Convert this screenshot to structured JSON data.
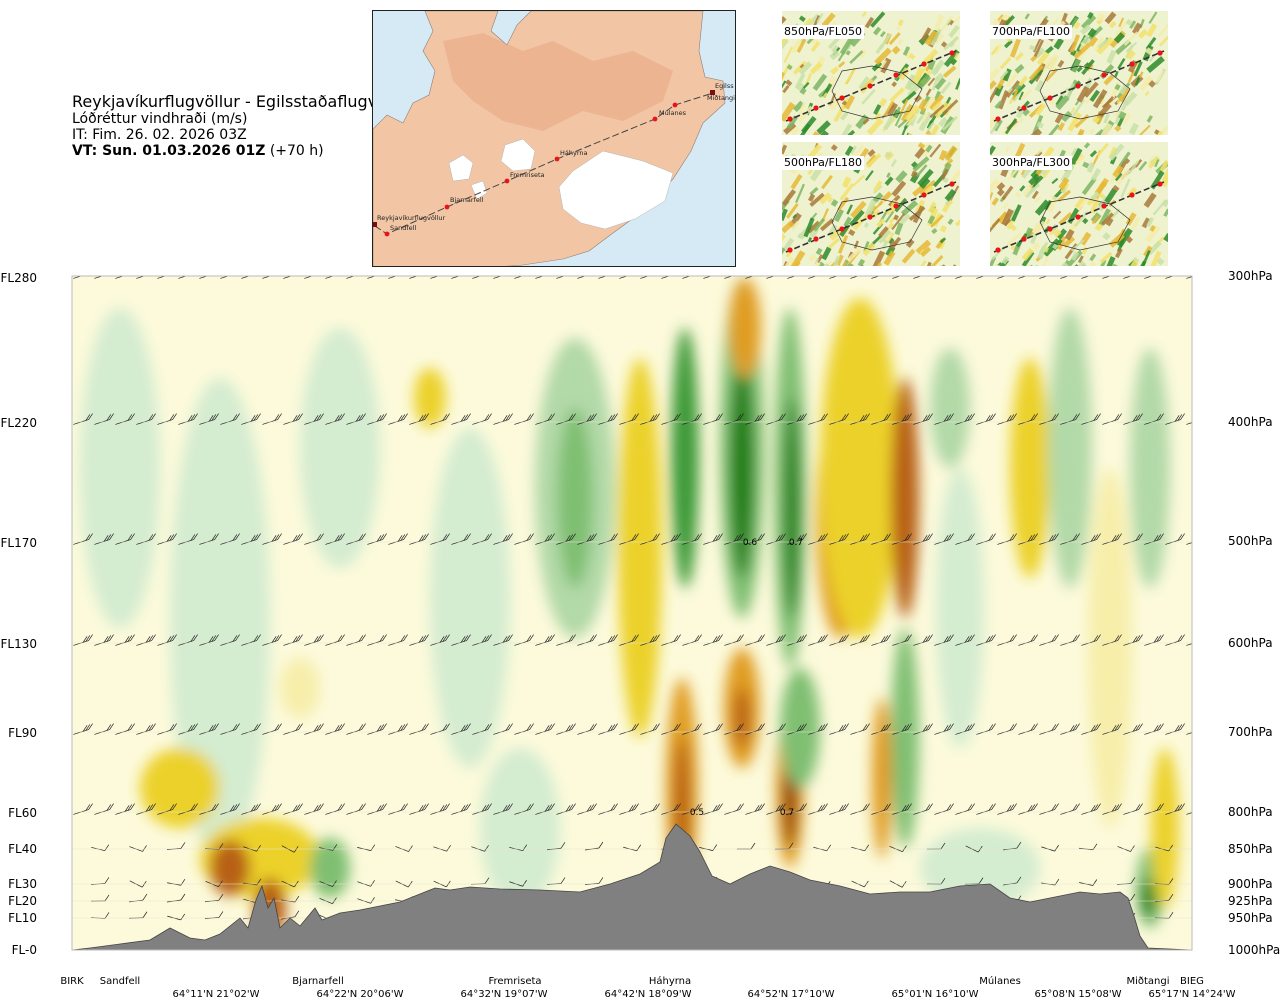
{
  "header": {
    "route": "Reykjavíkurflugvöllur - Egilsstaðaflugvöllur",
    "product": "Lóðréttur vindhraði (m/s)",
    "issue_time": "IT: Fim. 26. 02. 2026 03Z",
    "valid_time_label": "VT: Sun. 01.03.2026 01Z",
    "forecast_hour": "(+70 h)"
  },
  "overview_map": {
    "waypoints": [
      "Reykjavíkurflugvöllur",
      "Sandfell",
      "Bjarnarfell",
      "Fremriseta",
      "Háhyrna",
      "Múlanes",
      "Miðtangi",
      "Egilsstaðaflugvöllur"
    ],
    "labels": {
      "reykjavik": "Reykjavíkurflugvöllur",
      "sandfell": "Sandfell",
      "bjarnarfell": "Bjarnarfell",
      "fremriseta": "Fremriseta",
      "hahyrna": "Háhyrna",
      "mulanes": "Múlanes",
      "midtangi": "Miðtangi",
      "egilsstadir": "Egilss"
    },
    "colors": {
      "land": "#f2c6a4",
      "glacier": "#ffffff",
      "sea": "#d6eaf6",
      "route": "#444444",
      "waypoint": "#e8161b"
    }
  },
  "mini_maps": [
    {
      "id": "850",
      "label": "850hPa/FL050"
    },
    {
      "id": "700",
      "label": "700hPa/FL100"
    },
    {
      "id": "500",
      "label": "500hPa/FL180"
    },
    {
      "id": "300",
      "label": "300hPa/FL300"
    }
  ],
  "chart_data": {
    "type": "heatmap",
    "variable": "Lóðréttur vindhraði (m/s)",
    "colors": {
      "strong_down": "#1a7d10",
      "down_3": "#3e9a39",
      "down_2": "#7fbf72",
      "down_1": "#b2d9a8",
      "weak_down": "#d4ecd0",
      "near_zero": "#fcfadb",
      "weak_up": "#f7eeaa",
      "up_1": "#ecd12a",
      "up_2": "#e09c24",
      "up_3": "#b86118",
      "strong_up": "#8c3a0f",
      "terrain": "#808080"
    },
    "left_axis_ticks": [
      "FL280",
      "FL220",
      "FL170",
      "FL130",
      "FL90",
      "FL60",
      "FL40",
      "FL30",
      "FL20",
      "FL10",
      "FL-0"
    ],
    "right_axis_ticks": [
      "300hPa",
      "400hPa",
      "500hPa",
      "600hPa",
      "700hPa",
      "800hPa",
      "850hPa",
      "900hPa",
      "925hPa",
      "950hPa",
      "1000hPa"
    ],
    "pressure_levels_hpa": [
      300,
      400,
      500,
      600,
      700,
      800,
      850,
      900,
      925,
      950,
      1000
    ],
    "waypoint_labels": [
      "BIRK",
      "Sandfell",
      "Bjarnarfell",
      "Fremriseta",
      "Háhyrna",
      "Múlanes",
      "Miðtangi",
      "BIEG"
    ],
    "coordinate_labels": [
      "64°11'N 21°02'W",
      "64°22'N 20°06'W",
      "64°32'N 19°07'W",
      "64°42'N 18°09'W",
      "64°52'N 17°10'W",
      "65°01'N 16°10'W",
      "65°08'N 15°08'W",
      "65°17'N 14°24'W"
    ],
    "contour_labels": [
      "0.6",
      "0.7",
      "0.5",
      "0.7"
    ]
  }
}
